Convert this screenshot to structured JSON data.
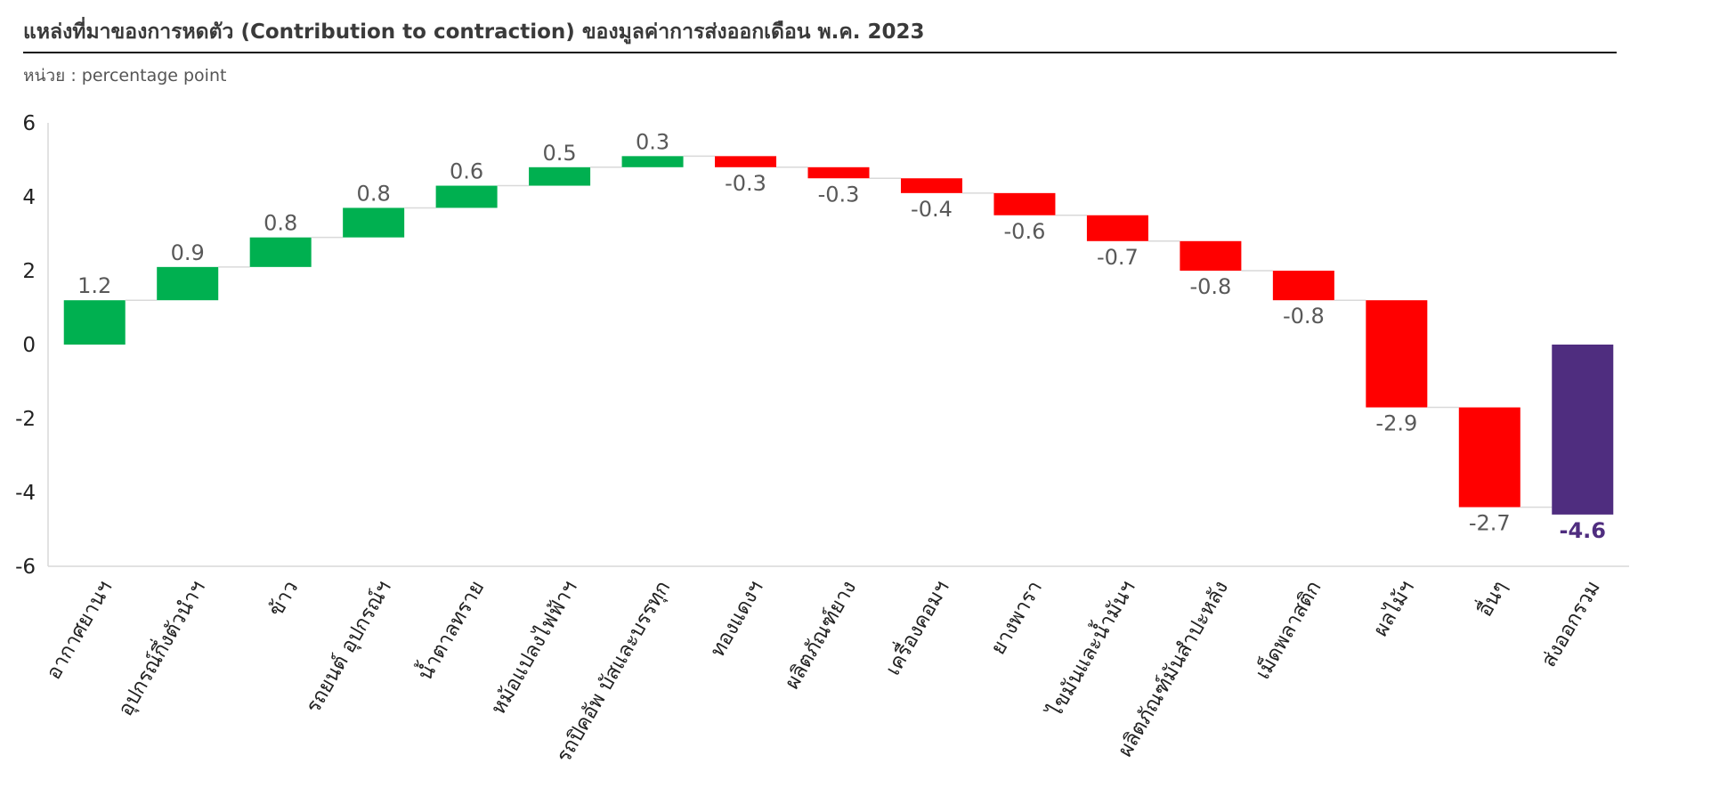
{
  "header": {
    "title": "แหล่งที่มาของการหดตัว (Contribution to contraction) ของมูลค่าการส่งออกเดือน พ.ค. 2023",
    "unit": "หน่วย : percentage point"
  },
  "colors": {
    "positive": "#00b050",
    "negative": "#ff0000",
    "total": "#4f2d7f",
    "connector": "#d9d9d9",
    "axis": "#d9d9d9",
    "label": "#595959"
  },
  "chart_data": {
    "type": "waterfall",
    "title": "",
    "xlabel": "",
    "ylabel": "",
    "ylim": [
      -6,
      6
    ],
    "yticks": [
      6,
      4,
      2,
      0,
      -2,
      -4,
      -6
    ],
    "grid": false,
    "categories": [
      "อากาศยานฯ",
      "อุปกรณ์กึ่งตัวนำฯ",
      "ข้าว",
      "รถยนต์ อุปกรณ์ฯ",
      "น้ำตาลทราย",
      "หม้อแปลงไฟฟ้าฯ",
      "รถปิคอัพ บัสและบรรทุก",
      "ทองแดงฯ",
      "ผลิตภัณฑ์ยาง",
      "เครื่องคอมฯ",
      "ยางพารา",
      "ไขมันและน้ำมันฯ",
      "ผลิตภัณฑ์มันสำปะหลัง",
      "เม็ดพลาสติก",
      "ผลไม้ฯ",
      "อื่นๆ",
      "ส่งออกรวม"
    ],
    "values": [
      1.2,
      0.9,
      0.8,
      0.8,
      0.6,
      0.5,
      0.3,
      -0.3,
      -0.3,
      -0.4,
      -0.6,
      -0.7,
      -0.8,
      -0.8,
      -2.9,
      -2.7,
      -4.6
    ],
    "labels": [
      "1.2",
      "0.9",
      "0.8",
      "0.8",
      "0.6",
      "0.5",
      "0.3",
      "-0.3",
      "-0.3",
      "-0.4",
      "-0.6",
      "-0.7",
      "-0.8",
      "-0.8",
      "-2.9",
      "-2.7",
      "-4.6"
    ],
    "total_index": 16
  }
}
